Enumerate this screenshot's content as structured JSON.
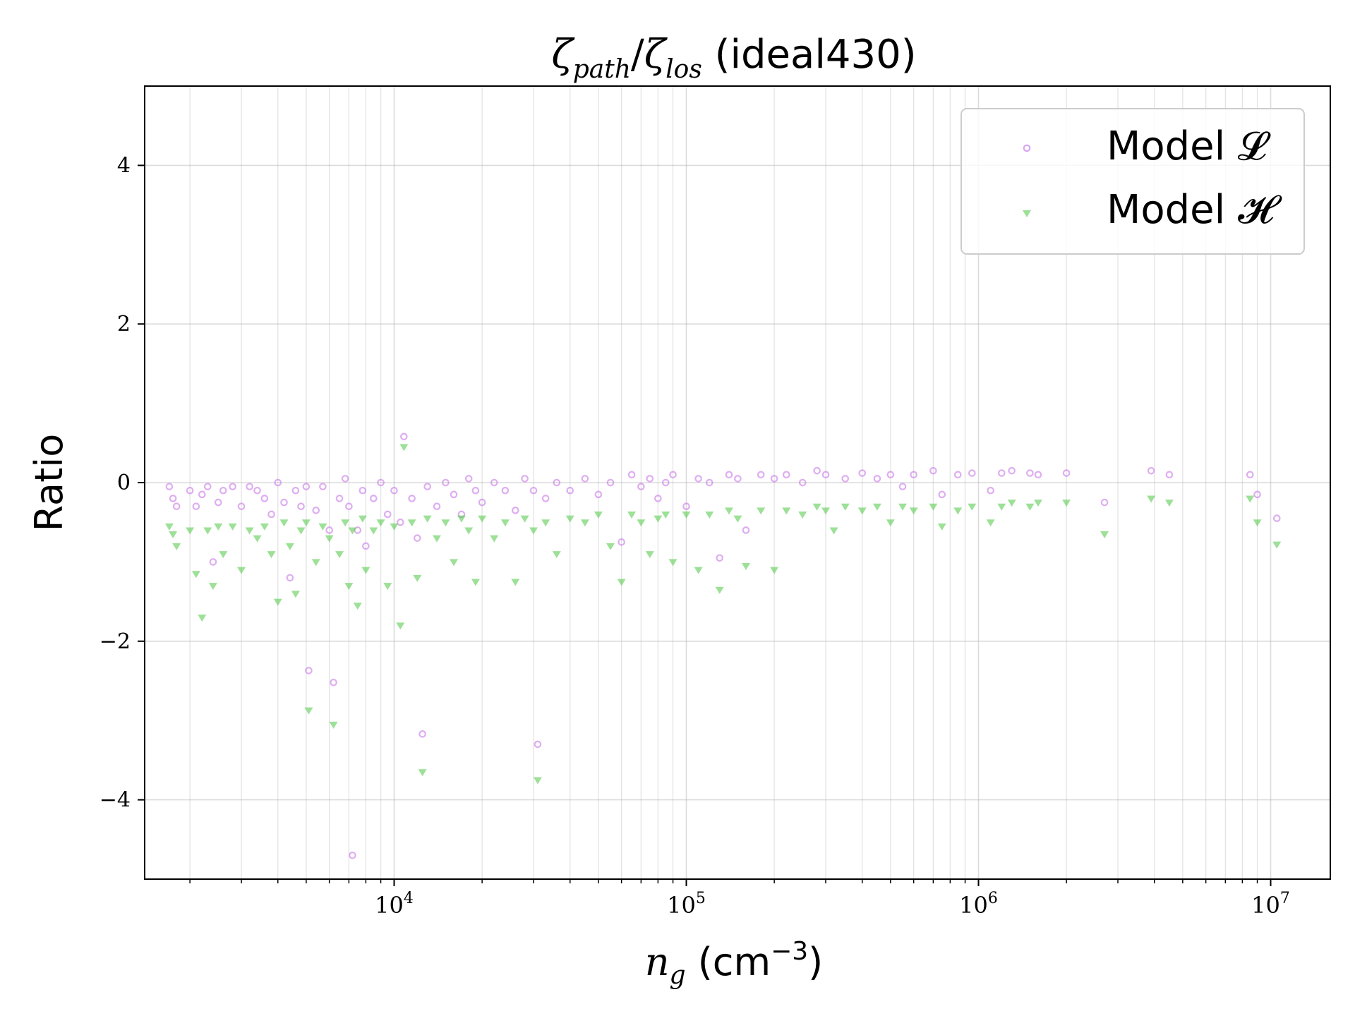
{
  "chart_data": {
    "type": "scatter",
    "title": {
      "zeta": "ζ",
      "sub_path": "path",
      "slash": "/",
      "sub_los": "los",
      "suffix": " (ideal430)"
    },
    "xlabel": {
      "var": "n",
      "sub": "g",
      "unit_open": " (cm",
      "exp": "−3",
      "unit_close": ")"
    },
    "ylabel": "Ratio",
    "x_scale": "log",
    "xlim": [
      1400,
      16000000
    ],
    "ylim": [
      -5,
      5
    ],
    "y_ticks": [
      {
        "value": 4,
        "label": "4"
      },
      {
        "value": 2,
        "label": "2"
      },
      {
        "value": 0,
        "label": "0"
      },
      {
        "value": -2,
        "label": "−2"
      },
      {
        "value": -4,
        "label": "−4"
      }
    ],
    "x_ticks": [
      {
        "value": 10000,
        "base": "10",
        "exp": "4"
      },
      {
        "value": 100000,
        "base": "10",
        "exp": "5"
      },
      {
        "value": 1000000,
        "base": "10",
        "exp": "6"
      },
      {
        "value": 10000000,
        "base": "10",
        "exp": "7"
      }
    ],
    "grid": true,
    "legend_position": "top-right",
    "series": [
      {
        "name": "Model 𝓛",
        "marker": "circle",
        "color": "#c36be4",
        "points": [
          [
            1700,
            -0.05
          ],
          [
            1750,
            -0.2
          ],
          [
            1800,
            -0.3
          ],
          [
            2000,
            -0.1
          ],
          [
            2100,
            -0.3
          ],
          [
            2200,
            -0.15
          ],
          [
            2300,
            -0.05
          ],
          [
            2400,
            -1.0
          ],
          [
            2500,
            -0.25
          ],
          [
            2600,
            -0.1
          ],
          [
            2800,
            -0.05
          ],
          [
            3000,
            -0.3
          ],
          [
            3200,
            -0.05
          ],
          [
            3400,
            -0.1
          ],
          [
            3600,
            -0.2
          ],
          [
            3800,
            -0.4
          ],
          [
            4000,
            0.0
          ],
          [
            4200,
            -0.25
          ],
          [
            4400,
            -1.2
          ],
          [
            4600,
            -0.1
          ],
          [
            4800,
            -0.3
          ],
          [
            5000,
            -0.05
          ],
          [
            5100,
            -2.37
          ],
          [
            5400,
            -0.35
          ],
          [
            5700,
            -0.05
          ],
          [
            6000,
            -0.6
          ],
          [
            6200,
            -2.52
          ],
          [
            6500,
            -0.2
          ],
          [
            6800,
            0.05
          ],
          [
            7000,
            -0.3
          ],
          [
            7200,
            -4.7
          ],
          [
            7500,
            -0.6
          ],
          [
            7800,
            -0.1
          ],
          [
            8000,
            -0.8
          ],
          [
            8500,
            -0.2
          ],
          [
            9000,
            0.0
          ],
          [
            9500,
            -0.4
          ],
          [
            10000,
            -0.1
          ],
          [
            10500,
            -0.5
          ],
          [
            10800,
            0.58
          ],
          [
            11500,
            -0.2
          ],
          [
            12000,
            -0.7
          ],
          [
            12500,
            -3.17
          ],
          [
            13000,
            -0.05
          ],
          [
            14000,
            -0.3
          ],
          [
            15000,
            0.0
          ],
          [
            16000,
            -0.15
          ],
          [
            17000,
            -0.4
          ],
          [
            18000,
            0.05
          ],
          [
            19000,
            -0.1
          ],
          [
            20000,
            -0.25
          ],
          [
            22000,
            0.0
          ],
          [
            24000,
            -0.1
          ],
          [
            26000,
            -0.35
          ],
          [
            28000,
            0.05
          ],
          [
            30000,
            -0.1
          ],
          [
            31000,
            -3.3
          ],
          [
            33000,
            -0.2
          ],
          [
            36000,
            0.0
          ],
          [
            40000,
            -0.1
          ],
          [
            45000,
            0.05
          ],
          [
            50000,
            -0.15
          ],
          [
            55000,
            0.0
          ],
          [
            60000,
            -0.75
          ],
          [
            65000,
            0.1
          ],
          [
            70000,
            -0.05
          ],
          [
            75000,
            0.05
          ],
          [
            80000,
            -0.2
          ],
          [
            85000,
            0.0
          ],
          [
            90000,
            0.1
          ],
          [
            100000,
            -0.3
          ],
          [
            110000,
            0.05
          ],
          [
            120000,
            0.0
          ],
          [
            130000,
            -0.95
          ],
          [
            140000,
            0.1
          ],
          [
            150000,
            0.05
          ],
          [
            160000,
            -0.6
          ],
          [
            180000,
            0.1
          ],
          [
            200000,
            0.05
          ],
          [
            220000,
            0.1
          ],
          [
            250000,
            0.0
          ],
          [
            280000,
            0.15
          ],
          [
            300000,
            0.1
          ],
          [
            350000,
            0.05
          ],
          [
            400000,
            0.12
          ],
          [
            450000,
            0.05
          ],
          [
            500000,
            0.1
          ],
          [
            550000,
            -0.05
          ],
          [
            600000,
            0.1
          ],
          [
            700000,
            0.15
          ],
          [
            750000,
            -0.15
          ],
          [
            850000,
            0.1
          ],
          [
            950000,
            0.12
          ],
          [
            1100000,
            -0.1
          ],
          [
            1200000,
            0.12
          ],
          [
            1300000,
            0.15
          ],
          [
            1500000,
            0.12
          ],
          [
            1600000,
            0.1
          ],
          [
            2000000,
            0.12
          ],
          [
            2700000,
            -0.25
          ],
          [
            3900000,
            0.15
          ],
          [
            4500000,
            0.1
          ],
          [
            8500000,
            0.1
          ],
          [
            9000000,
            -0.15
          ],
          [
            10500000,
            -0.45
          ]
        ]
      },
      {
        "name": "Model 𝓗",
        "marker": "triangle-down",
        "color": "#5ccc52",
        "points": [
          [
            1700,
            -0.55
          ],
          [
            1750,
            -0.65
          ],
          [
            1800,
            -0.8
          ],
          [
            2000,
            -0.6
          ],
          [
            2100,
            -1.15
          ],
          [
            2200,
            -1.7
          ],
          [
            2300,
            -0.6
          ],
          [
            2400,
            -1.3
          ],
          [
            2500,
            -0.55
          ],
          [
            2600,
            -0.9
          ],
          [
            2800,
            -0.55
          ],
          [
            3000,
            -1.1
          ],
          [
            3200,
            -0.6
          ],
          [
            3400,
            -0.7
          ],
          [
            3600,
            -0.55
          ],
          [
            3800,
            -0.9
          ],
          [
            4000,
            -1.5
          ],
          [
            4200,
            -0.5
          ],
          [
            4400,
            -0.8
          ],
          [
            4600,
            -1.4
          ],
          [
            4800,
            -0.6
          ],
          [
            5000,
            -0.5
          ],
          [
            5100,
            -2.87
          ],
          [
            5400,
            -1.0
          ],
          [
            5700,
            -0.55
          ],
          [
            6000,
            -0.7
          ],
          [
            6200,
            -3.05
          ],
          [
            6500,
            -0.9
          ],
          [
            6800,
            -0.5
          ],
          [
            7000,
            -1.3
          ],
          [
            7200,
            -0.6
          ],
          [
            7500,
            -1.55
          ],
          [
            7800,
            -0.45
          ],
          [
            8000,
            -1.1
          ],
          [
            8500,
            -0.6
          ],
          [
            9000,
            -0.5
          ],
          [
            9500,
            -1.3
          ],
          [
            10000,
            -0.55
          ],
          [
            10500,
            -1.8
          ],
          [
            10800,
            0.45
          ],
          [
            11500,
            -0.5
          ],
          [
            12000,
            -1.2
          ],
          [
            12500,
            -3.65
          ],
          [
            13000,
            -0.45
          ],
          [
            14000,
            -0.7
          ],
          [
            15000,
            -0.5
          ],
          [
            16000,
            -1.0
          ],
          [
            17000,
            -0.45
          ],
          [
            18000,
            -0.6
          ],
          [
            19000,
            -1.25
          ],
          [
            20000,
            -0.45
          ],
          [
            22000,
            -0.7
          ],
          [
            24000,
            -0.5
          ],
          [
            26000,
            -1.25
          ],
          [
            28000,
            -0.45
          ],
          [
            30000,
            -0.6
          ],
          [
            31000,
            -3.75
          ],
          [
            33000,
            -0.5
          ],
          [
            36000,
            -0.9
          ],
          [
            40000,
            -0.45
          ],
          [
            45000,
            -0.5
          ],
          [
            50000,
            -0.4
          ],
          [
            55000,
            -0.8
          ],
          [
            60000,
            -1.25
          ],
          [
            65000,
            -0.4
          ],
          [
            70000,
            -0.5
          ],
          [
            75000,
            -0.9
          ],
          [
            80000,
            -0.45
          ],
          [
            85000,
            -0.4
          ],
          [
            90000,
            -1.0
          ],
          [
            100000,
            -0.4
          ],
          [
            110000,
            -1.1
          ],
          [
            120000,
            -0.4
          ],
          [
            130000,
            -1.35
          ],
          [
            140000,
            -0.35
          ],
          [
            150000,
            -0.45
          ],
          [
            160000,
            -1.05
          ],
          [
            180000,
            -0.35
          ],
          [
            200000,
            -1.1
          ],
          [
            220000,
            -0.35
          ],
          [
            250000,
            -0.4
          ],
          [
            280000,
            -0.3
          ],
          [
            300000,
            -0.35
          ],
          [
            320000,
            -0.6
          ],
          [
            350000,
            -0.3
          ],
          [
            400000,
            -0.35
          ],
          [
            450000,
            -0.3
          ],
          [
            500000,
            -0.5
          ],
          [
            550000,
            -0.3
          ],
          [
            600000,
            -0.35
          ],
          [
            700000,
            -0.3
          ],
          [
            750000,
            -0.55
          ],
          [
            850000,
            -0.35
          ],
          [
            950000,
            -0.3
          ],
          [
            1100000,
            -0.5
          ],
          [
            1200000,
            -0.3
          ],
          [
            1300000,
            -0.25
          ],
          [
            1500000,
            -0.3
          ],
          [
            1600000,
            -0.25
          ],
          [
            2000000,
            -0.25
          ],
          [
            2700000,
            -0.65
          ],
          [
            3900000,
            -0.2
          ],
          [
            4500000,
            -0.25
          ],
          [
            8500000,
            -0.2
          ],
          [
            9000000,
            -0.5
          ],
          [
            10500000,
            -0.78
          ]
        ]
      }
    ]
  }
}
